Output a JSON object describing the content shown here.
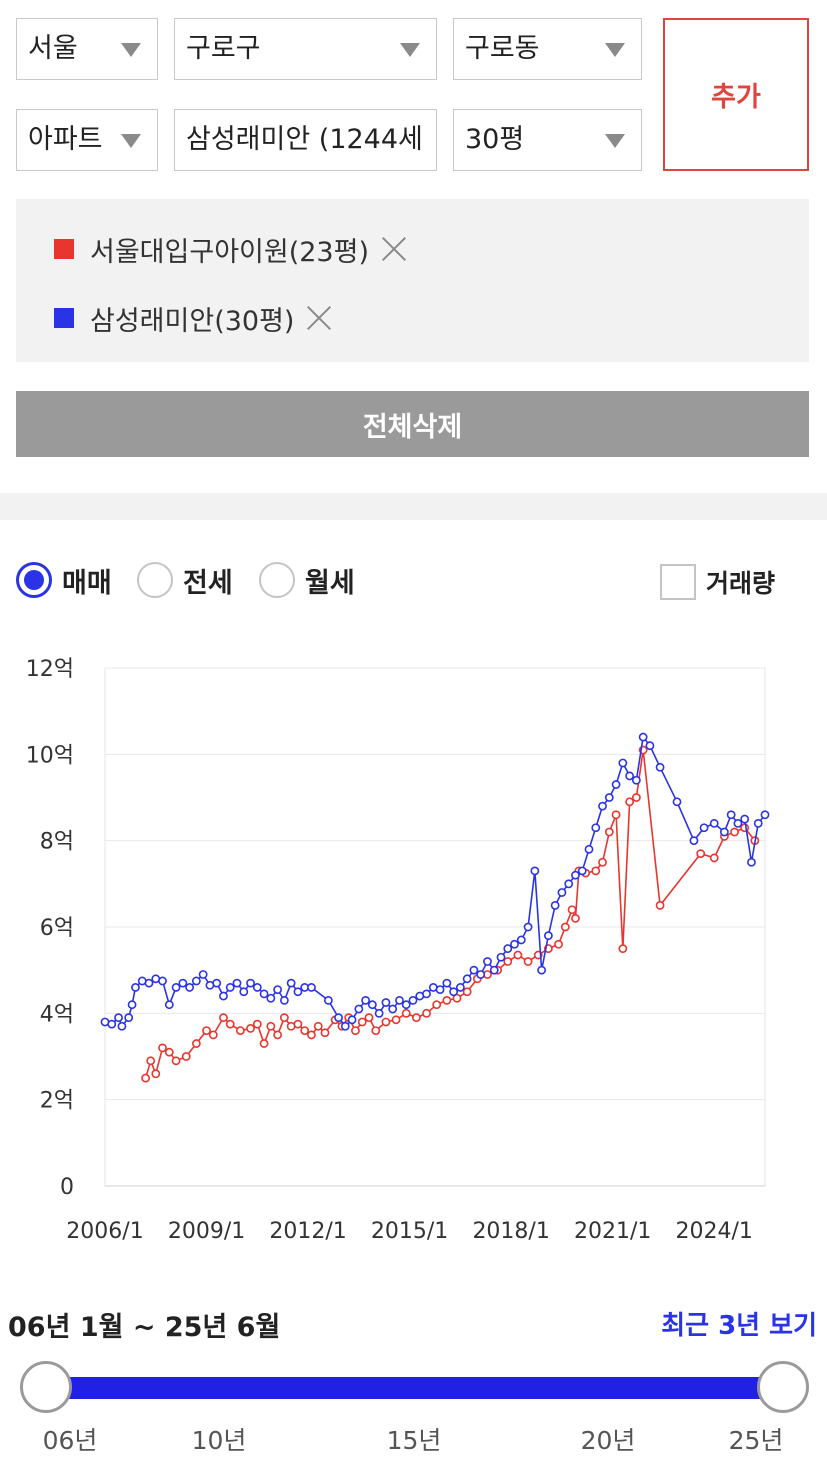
{
  "filters": {
    "city": "서울",
    "district": "구로구",
    "dong": "구로동",
    "type": "아파트",
    "complex": "삼성래미안 (1244세",
    "size": "30평",
    "add_label": "추가"
  },
  "legend": [
    {
      "label": "서울대입구아이원(23평)",
      "color": "#e8352e"
    },
    {
      "label": "삼성래미안(30평)",
      "color": "#2a33e6"
    }
  ],
  "clear_all_label": "전체삭제",
  "trade_options": [
    {
      "label": "매매",
      "selected": true
    },
    {
      "label": "전세",
      "selected": false
    },
    {
      "label": "월세",
      "selected": false
    }
  ],
  "volume_label": "거래량",
  "chart_data": {
    "type": "line",
    "title": "",
    "xlabel": "",
    "ylabel": "",
    "x_tick_labels": [
      "2006/1",
      "2009/1",
      "2012/1",
      "2015/1",
      "2018/1",
      "2021/1",
      "2024/1"
    ],
    "y_tick_labels": [
      "0",
      "2억",
      "4억",
      "6억",
      "8억",
      "10억",
      "12억"
    ],
    "ylim": [
      0,
      12
    ],
    "xlim": [
      2006.0,
      2025.5
    ],
    "grid": "horizontal",
    "series": [
      {
        "name": "서울대입구아이원(23평)",
        "color": "#e8352e",
        "points": [
          [
            2007.2,
            2.5
          ],
          [
            2007.35,
            2.9
          ],
          [
            2007.5,
            2.6
          ],
          [
            2007.7,
            3.2
          ],
          [
            2007.9,
            3.1
          ],
          [
            2008.1,
            2.9
          ],
          [
            2008.4,
            3.0
          ],
          [
            2008.7,
            3.3
          ],
          [
            2009.0,
            3.6
          ],
          [
            2009.2,
            3.5
          ],
          [
            2009.5,
            3.9
          ],
          [
            2009.7,
            3.75
          ],
          [
            2010.0,
            3.6
          ],
          [
            2010.3,
            3.65
          ],
          [
            2010.5,
            3.75
          ],
          [
            2010.7,
            3.3
          ],
          [
            2010.9,
            3.7
          ],
          [
            2011.1,
            3.5
          ],
          [
            2011.3,
            3.9
          ],
          [
            2011.5,
            3.7
          ],
          [
            2011.7,
            3.75
          ],
          [
            2011.9,
            3.6
          ],
          [
            2012.1,
            3.5
          ],
          [
            2012.3,
            3.7
          ],
          [
            2012.5,
            3.55
          ],
          [
            2012.8,
            3.85
          ],
          [
            2013.0,
            3.7
          ],
          [
            2013.2,
            3.9
          ],
          [
            2013.4,
            3.6
          ],
          [
            2013.6,
            3.8
          ],
          [
            2013.8,
            3.9
          ],
          [
            2014.0,
            3.6
          ],
          [
            2014.3,
            3.8
          ],
          [
            2014.6,
            3.85
          ],
          [
            2014.9,
            4.0
          ],
          [
            2015.2,
            3.9
          ],
          [
            2015.5,
            4.0
          ],
          [
            2015.8,
            4.2
          ],
          [
            2016.1,
            4.3
          ],
          [
            2016.4,
            4.35
          ],
          [
            2016.7,
            4.5
          ],
          [
            2017.0,
            4.8
          ],
          [
            2017.3,
            4.9
          ],
          [
            2017.6,
            5.0
          ],
          [
            2017.9,
            5.2
          ],
          [
            2018.2,
            5.35
          ],
          [
            2018.5,
            5.2
          ],
          [
            2018.8,
            5.35
          ],
          [
            2019.1,
            5.5
          ],
          [
            2019.4,
            5.6
          ],
          [
            2019.6,
            6.0
          ],
          [
            2019.8,
            6.4
          ],
          [
            2019.9,
            6.2
          ],
          [
            2020.0,
            7.3
          ],
          [
            2020.2,
            7.25
          ],
          [
            2020.5,
            7.3
          ],
          [
            2020.7,
            7.5
          ],
          [
            2020.9,
            8.2
          ],
          [
            2021.1,
            8.6
          ],
          [
            2021.3,
            5.5
          ],
          [
            2021.5,
            8.9
          ],
          [
            2021.7,
            9.0
          ],
          [
            2021.9,
            10.1
          ],
          [
            2022.4,
            6.5
          ],
          [
            2023.6,
            7.7
          ],
          [
            2024.0,
            7.6
          ],
          [
            2024.3,
            8.1
          ],
          [
            2024.6,
            8.2
          ],
          [
            2024.9,
            8.3
          ],
          [
            2025.2,
            8.0
          ]
        ]
      },
      {
        "name": "삼성래미안(30평)",
        "color": "#2a33e6",
        "points": [
          [
            2006.0,
            3.8
          ],
          [
            2006.2,
            3.75
          ],
          [
            2006.4,
            3.9
          ],
          [
            2006.5,
            3.7
          ],
          [
            2006.7,
            3.9
          ],
          [
            2006.8,
            4.2
          ],
          [
            2006.9,
            4.6
          ],
          [
            2007.1,
            4.75
          ],
          [
            2007.3,
            4.7
          ],
          [
            2007.5,
            4.8
          ],
          [
            2007.7,
            4.75
          ],
          [
            2007.9,
            4.2
          ],
          [
            2008.1,
            4.6
          ],
          [
            2008.3,
            4.7
          ],
          [
            2008.5,
            4.6
          ],
          [
            2008.7,
            4.75
          ],
          [
            2008.9,
            4.9
          ],
          [
            2009.1,
            4.65
          ],
          [
            2009.3,
            4.7
          ],
          [
            2009.5,
            4.4
          ],
          [
            2009.7,
            4.6
          ],
          [
            2009.9,
            4.7
          ],
          [
            2010.1,
            4.5
          ],
          [
            2010.3,
            4.7
          ],
          [
            2010.5,
            4.6
          ],
          [
            2010.7,
            4.45
          ],
          [
            2010.9,
            4.35
          ],
          [
            2011.1,
            4.55
          ],
          [
            2011.3,
            4.3
          ],
          [
            2011.5,
            4.7
          ],
          [
            2011.7,
            4.5
          ],
          [
            2011.9,
            4.6
          ],
          [
            2012.1,
            4.6
          ],
          [
            2012.6,
            4.3
          ],
          [
            2012.9,
            3.9
          ],
          [
            2013.1,
            3.7
          ],
          [
            2013.3,
            3.85
          ],
          [
            2013.5,
            4.1
          ],
          [
            2013.7,
            4.3
          ],
          [
            2013.9,
            4.2
          ],
          [
            2014.1,
            4.0
          ],
          [
            2014.3,
            4.25
          ],
          [
            2014.5,
            4.1
          ],
          [
            2014.7,
            4.3
          ],
          [
            2014.9,
            4.2
          ],
          [
            2015.1,
            4.3
          ],
          [
            2015.3,
            4.4
          ],
          [
            2015.5,
            4.45
          ],
          [
            2015.7,
            4.6
          ],
          [
            2015.9,
            4.55
          ],
          [
            2016.1,
            4.7
          ],
          [
            2016.3,
            4.5
          ],
          [
            2016.5,
            4.6
          ],
          [
            2016.7,
            4.8
          ],
          [
            2016.9,
            5.0
          ],
          [
            2017.1,
            4.9
          ],
          [
            2017.3,
            5.2
          ],
          [
            2017.5,
            5.0
          ],
          [
            2017.7,
            5.3
          ],
          [
            2017.9,
            5.5
          ],
          [
            2018.1,
            5.6
          ],
          [
            2018.3,
            5.7
          ],
          [
            2018.5,
            6.0
          ],
          [
            2018.7,
            7.3
          ],
          [
            2018.9,
            5.0
          ],
          [
            2019.1,
            5.8
          ],
          [
            2019.3,
            6.5
          ],
          [
            2019.5,
            6.8
          ],
          [
            2019.7,
            7.0
          ],
          [
            2019.9,
            7.2
          ],
          [
            2020.1,
            7.3
          ],
          [
            2020.3,
            7.8
          ],
          [
            2020.5,
            8.3
          ],
          [
            2020.7,
            8.8
          ],
          [
            2020.9,
            9.0
          ],
          [
            2021.1,
            9.3
          ],
          [
            2021.3,
            9.8
          ],
          [
            2021.5,
            9.5
          ],
          [
            2021.7,
            9.4
          ],
          [
            2021.9,
            10.4
          ],
          [
            2022.1,
            10.2
          ],
          [
            2022.4,
            9.7
          ],
          [
            2022.9,
            8.9
          ],
          [
            2023.4,
            8.0
          ],
          [
            2023.7,
            8.3
          ],
          [
            2024.0,
            8.4
          ],
          [
            2024.3,
            8.2
          ],
          [
            2024.5,
            8.6
          ],
          [
            2024.7,
            8.4
          ],
          [
            2024.9,
            8.5
          ],
          [
            2025.1,
            7.5
          ],
          [
            2025.3,
            8.4
          ],
          [
            2025.5,
            8.6
          ]
        ]
      }
    ]
  },
  "range": {
    "label": "06년 1월 ~ 25년 6월",
    "recent_link": "최근 3년 보기",
    "start_fraction": 0.0,
    "end_fraction": 1.0,
    "tick_labels": [
      "06년",
      "10년",
      "15년",
      "20년",
      "25년"
    ]
  }
}
